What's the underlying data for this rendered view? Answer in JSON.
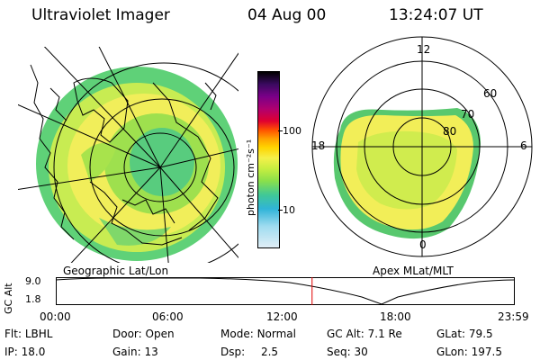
{
  "header": {
    "instrument": "Ultraviolet Imager",
    "date": "04 Aug 00",
    "time": "13:24:07 UT"
  },
  "left_panel": {
    "caption": "Geographic Lat/Lon"
  },
  "right_panel": {
    "caption": "Apex MLat/MLT",
    "mlt_labels": {
      "top": "12",
      "left": "18",
      "right": "6",
      "bottom": "0"
    },
    "lat_labels": [
      "60",
      "70",
      "80"
    ]
  },
  "colorbar": {
    "unit_label": "photon cm⁻²s⁻¹",
    "tick_labels": [
      "100",
      "10"
    ],
    "colors": [
      "#000000",
      "#3a0a60",
      "#7a0088",
      "#b00070",
      "#e00030",
      "#ff5000",
      "#ffa000",
      "#ffd400",
      "#f4f04a",
      "#c8ee40",
      "#8be04a",
      "#40c896",
      "#30b4d8",
      "#a0dcf0",
      "#e0eef6"
    ]
  },
  "altitude_plot": {
    "axis_label": "GC Alt",
    "y_ticks": [
      "9.0",
      "1.8"
    ],
    "x_ticks": [
      "00:00",
      "06:00",
      "12:00",
      "18:00",
      "23:59"
    ],
    "current_time_hours": 13.4,
    "marker_color": "#e00000"
  },
  "info": {
    "row1": [
      {
        "key": "Flt:",
        "val": "LBHL"
      },
      {
        "key": "Door:",
        "val": "Open"
      },
      {
        "key": "Mode:",
        "val": "Normal"
      },
      {
        "key": "GC Alt:",
        "val": "7.1 Re"
      },
      {
        "key": "GLat:",
        "val": "79.5"
      }
    ],
    "row2": [
      {
        "key": "IP:",
        "val": "18.0"
      },
      {
        "key": "Gain:",
        "val": "13"
      },
      {
        "key": "Dsp:",
        "val": "2.5"
      },
      {
        "key": "Seq:",
        "val": "30"
      },
      {
        "key": "GLon:",
        "val": "197.5"
      }
    ]
  }
}
